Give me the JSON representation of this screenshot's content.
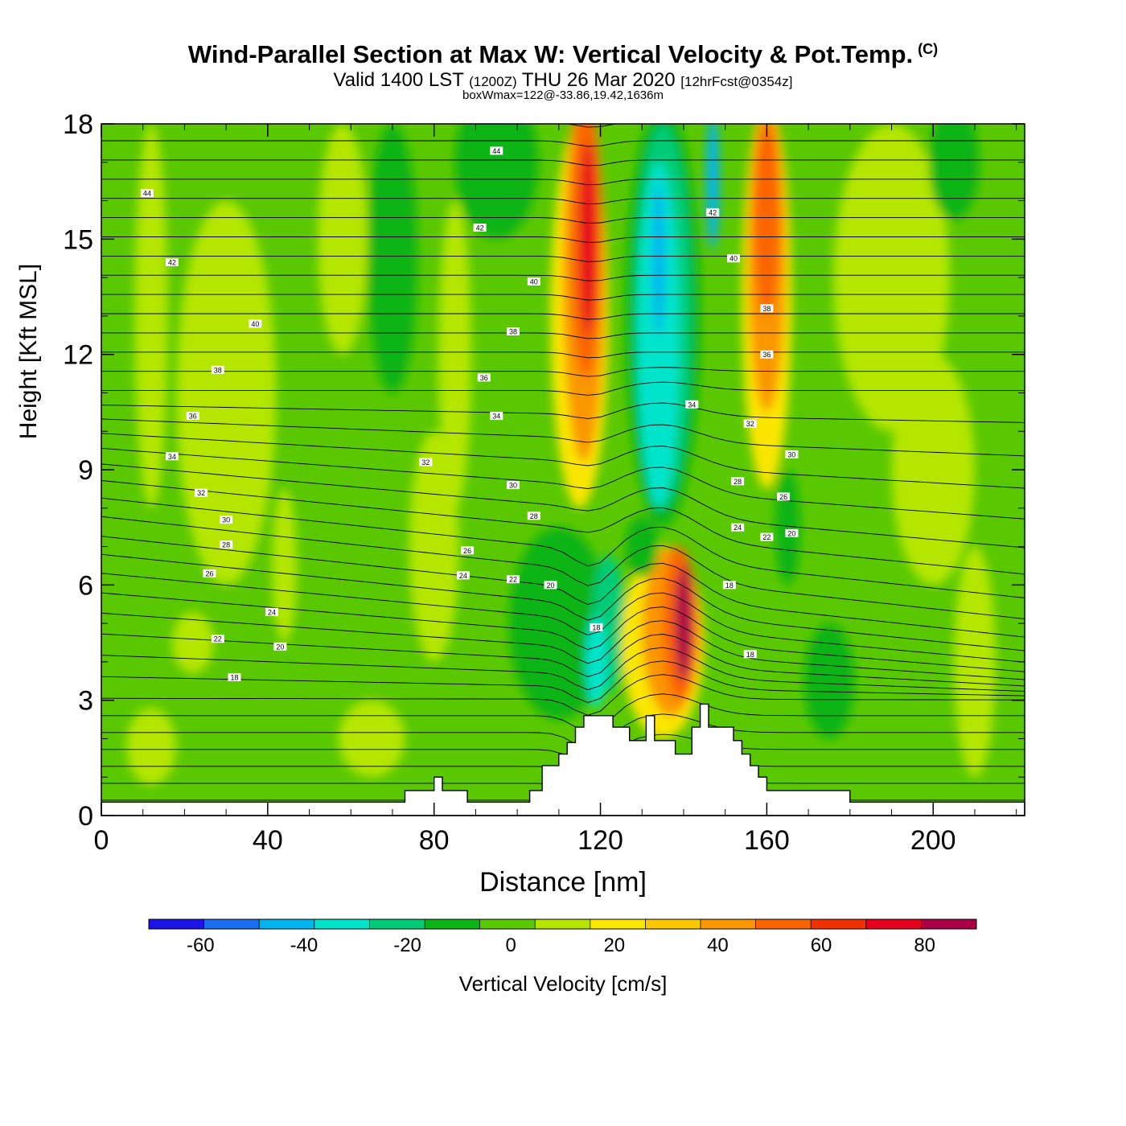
{
  "title": {
    "main": "Wind-Parallel Section at Max W: Vertical Velocity & Pot.Temp.",
    "mark": "(C)",
    "sub_valid": "Valid 1400 LST",
    "sub_utc": "(1200Z)",
    "sub_date": "THU 26 Mar 2020",
    "sub_fcst": "[12hrFcst@0354z]",
    "box": "boxWmax=122@-33.86,19.42,1636m"
  },
  "chart_data": {
    "type": "heatmap",
    "xlabel": "Distance [nm]",
    "ylabel": "Height [Kft MSL]",
    "xlim": [
      0,
      222
    ],
    "ylim": [
      0,
      18
    ],
    "x_ticks": [
      0,
      40,
      80,
      120,
      160,
      200
    ],
    "y_ticks": [
      0,
      3,
      6,
      9,
      12,
      15,
      18
    ],
    "field": "Vertical Velocity",
    "colorbar": {
      "label": "Vertical Velocity [cm/s]",
      "levels": [
        -70,
        -60,
        -50,
        -40,
        -30,
        -20,
        -10,
        0,
        10,
        20,
        30,
        40,
        50,
        60,
        70,
        80,
        90
      ],
      "tick_labels": [
        -60,
        -40,
        -20,
        0,
        20,
        40,
        60,
        80
      ],
      "colors": [
        "#1c14e6",
        "#1a6ef0",
        "#00b4f0",
        "#00e4cc",
        "#00cc78",
        "#0ab414",
        "#5ac800",
        "#b4e600",
        "#fae600",
        "#fac800",
        "#fa9600",
        "#fa6400",
        "#f03200",
        "#e6001e",
        "#aa0046"
      ]
    },
    "features": [
      {
        "name": "upper updraft band",
        "x_range": [
          108,
          124
        ],
        "z_range": [
          8.5,
          18
        ],
        "w_peak": 65
      },
      {
        "name": "central downdraft column",
        "x_range": [
          125,
          152
        ],
        "z_range": [
          7,
          18
        ],
        "w_peak": -55
      },
      {
        "name": "east updraft band",
        "x_range": [
          152,
          168
        ],
        "z_range": [
          8,
          18
        ],
        "w_peak": 55
      },
      {
        "name": "low-level lee updraft",
        "x_range": [
          120,
          150
        ],
        "z_range": [
          1.5,
          7.5
        ],
        "w_peak": 85
      },
      {
        "name": "low-level downdraft",
        "x_range": [
          110,
          125
        ],
        "z_range": [
          1.5,
          6
        ],
        "w_peak": -45
      }
    ],
    "theta_contours": {
      "field": "Pot.Temp.",
      "labels": [
        {
          "x": 11,
          "z": 16.2,
          "value": "44"
        },
        {
          "x": 17,
          "z": 14.4,
          "value": "42"
        },
        {
          "x": 37,
          "z": 12.8,
          "value": "40"
        },
        {
          "x": 28,
          "z": 11.6,
          "value": "38"
        },
        {
          "x": 22,
          "z": 10.4,
          "value": "36"
        },
        {
          "x": 17,
          "z": 9.35,
          "value": "34"
        },
        {
          "x": 24,
          "z": 8.4,
          "value": "32"
        },
        {
          "x": 30,
          "z": 7.7,
          "value": "30"
        },
        {
          "x": 30,
          "z": 7.05,
          "value": "28"
        },
        {
          "x": 26,
          "z": 6.3,
          "value": "26"
        },
        {
          "x": 41,
          "z": 5.3,
          "value": "24"
        },
        {
          "x": 28,
          "z": 4.6,
          "value": "22"
        },
        {
          "x": 43,
          "z": 4.4,
          "value": "20"
        },
        {
          "x": 32,
          "z": 3.6,
          "value": "18"
        },
        {
          "x": 95,
          "z": 17.3,
          "value": "44"
        },
        {
          "x": 91,
          "z": 15.3,
          "value": "42"
        },
        {
          "x": 104,
          "z": 13.9,
          "value": "40"
        },
        {
          "x": 99,
          "z": 12.6,
          "value": "38"
        },
        {
          "x": 92,
          "z": 11.4,
          "value": "36"
        },
        {
          "x": 95,
          "z": 10.4,
          "value": "34"
        },
        {
          "x": 78,
          "z": 9.2,
          "value": "32"
        },
        {
          "x": 99,
          "z": 8.6,
          "value": "30"
        },
        {
          "x": 104,
          "z": 7.8,
          "value": "28"
        },
        {
          "x": 88,
          "z": 6.9,
          "value": "26"
        },
        {
          "x": 87,
          "z": 6.25,
          "value": "24"
        },
        {
          "x": 99,
          "z": 6.15,
          "value": "22"
        },
        {
          "x": 108,
          "z": 6.0,
          "value": "20"
        },
        {
          "x": 119,
          "z": 4.9,
          "value": "18"
        },
        {
          "x": 147,
          "z": 15.7,
          "value": "42"
        },
        {
          "x": 152,
          "z": 14.5,
          "value": "40"
        },
        {
          "x": 160,
          "z": 13.2,
          "value": "38"
        },
        {
          "x": 160,
          "z": 12.0,
          "value": "36"
        },
        {
          "x": 142,
          "z": 10.7,
          "value": "34"
        },
        {
          "x": 156,
          "z": 10.2,
          "value": "32"
        },
        {
          "x": 166,
          "z": 9.4,
          "value": "30"
        },
        {
          "x": 153,
          "z": 8.7,
          "value": "28"
        },
        {
          "x": 164,
          "z": 8.3,
          "value": "26"
        },
        {
          "x": 153,
          "z": 7.5,
          "value": "24"
        },
        {
          "x": 160,
          "z": 7.25,
          "value": "22"
        },
        {
          "x": 166,
          "z": 7.35,
          "value": "20"
        },
        {
          "x": 151,
          "z": 6.0,
          "value": "18"
        },
        {
          "x": 156,
          "z": 4.2,
          "value": "18"
        }
      ]
    },
    "terrain": {
      "x": [
        0,
        73,
        73,
        80,
        80,
        82,
        82,
        88,
        88,
        103,
        103,
        106,
        106,
        110,
        110,
        112,
        112,
        114,
        114,
        116,
        116,
        123,
        123,
        127,
        127,
        131,
        131,
        133,
        133,
        138,
        138,
        142,
        142,
        144,
        144,
        146,
        146,
        152,
        152,
        154,
        154,
        156,
        156,
        158,
        158,
        160,
        160,
        180,
        180,
        186,
        186,
        222
      ],
      "z": [
        0.35,
        0.35,
        0.65,
        0.65,
        1.0,
        1.0,
        0.65,
        0.65,
        0.35,
        0.35,
        0.65,
        0.65,
        1.3,
        1.3,
        1.6,
        1.6,
        1.9,
        1.9,
        2.3,
        2.3,
        2.6,
        2.6,
        2.3,
        2.3,
        1.95,
        1.95,
        2.6,
        2.6,
        1.95,
        1.95,
        1.6,
        1.6,
        2.3,
        2.3,
        2.9,
        2.9,
        2.3,
        2.3,
        1.95,
        1.95,
        1.6,
        1.6,
        1.3,
        1.3,
        1.0,
        1.0,
        0.65,
        0.65,
        0.35,
        0.35,
        0.35,
        0.35
      ]
    }
  }
}
